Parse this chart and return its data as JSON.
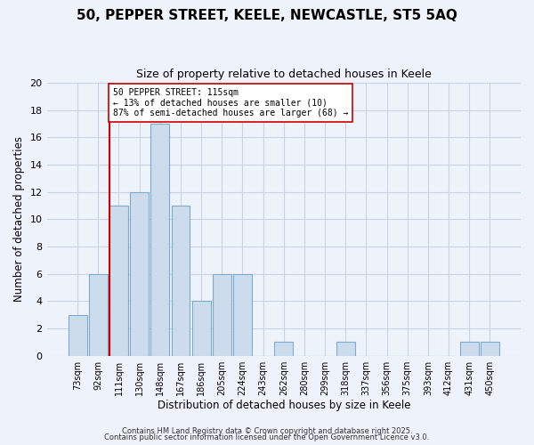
{
  "title": "50, PEPPER STREET, KEELE, NEWCASTLE, ST5 5AQ",
  "subtitle": "Size of property relative to detached houses in Keele",
  "xlabel": "Distribution of detached houses by size in Keele",
  "ylabel": "Number of detached properties",
  "bar_labels": [
    "73sqm",
    "92sqm",
    "111sqm",
    "130sqm",
    "148sqm",
    "167sqm",
    "186sqm",
    "205sqm",
    "224sqm",
    "243sqm",
    "262sqm",
    "280sqm",
    "299sqm",
    "318sqm",
    "337sqm",
    "356sqm",
    "375sqm",
    "393sqm",
    "412sqm",
    "431sqm",
    "450sqm"
  ],
  "bar_values": [
    3,
    6,
    11,
    12,
    17,
    11,
    4,
    6,
    6,
    0,
    1,
    0,
    0,
    1,
    0,
    0,
    0,
    0,
    0,
    1,
    1
  ],
  "bar_color": "#ccdcec",
  "bar_edge_color": "#7aabcc",
  "vline_x_index": 2,
  "vline_color": "#cc0000",
  "annotation_text": "50 PEPPER STREET: 115sqm\n← 13% of detached houses are smaller (10)\n87% of semi-detached houses are larger (68) →",
  "ylim": [
    0,
    20
  ],
  "yticks": [
    0,
    2,
    4,
    6,
    8,
    10,
    12,
    14,
    16,
    18,
    20
  ],
  "grid_color": "#c8d4e4",
  "background_color": "#eef2fb",
  "footer_line1": "Contains HM Land Registry data © Crown copyright and database right 2025.",
  "footer_line2": "Contains public sector information licensed under the Open Government Licence v3.0."
}
